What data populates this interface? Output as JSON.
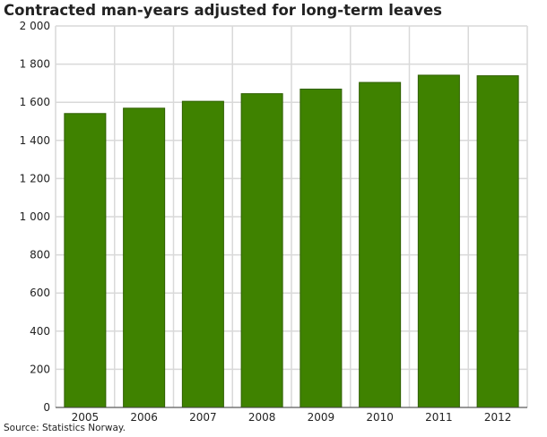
{
  "chart_data": {
    "type": "bar",
    "title": "Contracted man-years adjusted for long-term leaves",
    "xlabel": "",
    "ylabel": "",
    "categories": [
      "2005",
      "2006",
      "2007",
      "2008",
      "2009",
      "2010",
      "2011",
      "2012"
    ],
    "values": [
      1541,
      1569,
      1605,
      1645,
      1669,
      1704,
      1742,
      1739
    ],
    "ylim": [
      0,
      2000
    ],
    "yticks": [
      0,
      200,
      400,
      600,
      800,
      1000,
      1200,
      1400,
      1600,
      1800,
      2000
    ],
    "ytick_labels": [
      "0",
      "200",
      "400",
      "600",
      "800",
      "1 000",
      "1 200",
      "1 400",
      "1 600",
      "1 800",
      "2 000"
    ],
    "grid": true,
    "bar_color": "#3f8200",
    "bar_border": "#2f5f00"
  },
  "source": "Source: Statistics Norway."
}
